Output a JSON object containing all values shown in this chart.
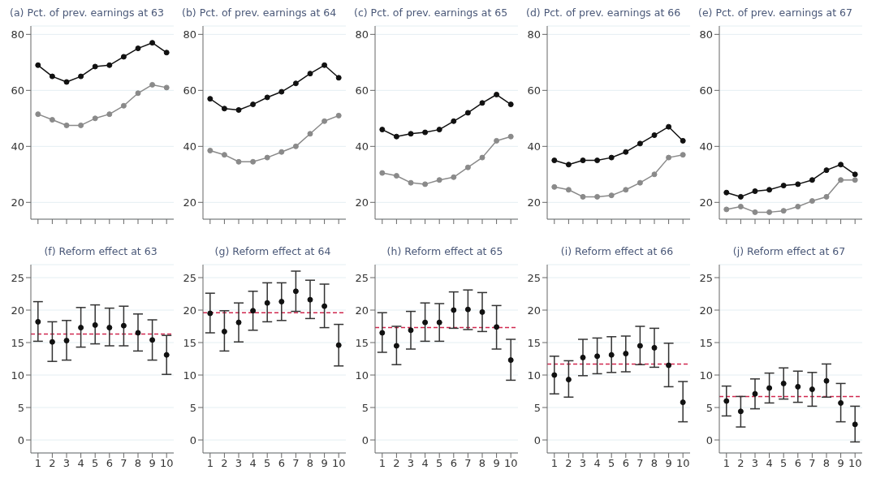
{
  "chart_data": [
    {
      "type": "line",
      "title": "(a) Pct. of prev. earnings at 63",
      "categories": [
        null,
        null,
        null,
        null,
        null,
        null,
        null,
        null,
        null,
        null
      ],
      "tick_labels": "y",
      "grid": "y",
      "marker": "circle",
      "line_style": "solid",
      "legend": false,
      "ylim": [
        14,
        83
      ],
      "yticks": [
        20,
        40,
        60,
        80
      ],
      "series": [
        {
          "color": "#111111",
          "values": [
            69,
            65,
            63,
            65,
            68.5,
            69,
            72,
            75,
            77,
            73.5
          ]
        },
        {
          "color": "#8a8a8a",
          "values": [
            51.5,
            49.5,
            47.5,
            47.5,
            50,
            51.5,
            54.5,
            59,
            62,
            61
          ]
        }
      ]
    },
    {
      "type": "line",
      "title": "(b) Pct. of prev. earnings at 64",
      "categories": [
        null,
        null,
        null,
        null,
        null,
        null,
        null,
        null,
        null,
        null
      ],
      "tick_labels": "y",
      "grid": "y",
      "marker": "circle",
      "line_style": "solid",
      "legend": false,
      "ylim": [
        14,
        83
      ],
      "yticks": [
        20,
        40,
        60,
        80
      ],
      "series": [
        {
          "color": "#111111",
          "values": [
            57,
            53.5,
            53,
            55,
            57.5,
            59.5,
            62.5,
            66,
            69,
            64.5
          ]
        },
        {
          "color": "#8a8a8a",
          "values": [
            38.5,
            37,
            34.5,
            34.5,
            36,
            38,
            40,
            44.5,
            49,
            51
          ]
        }
      ]
    },
    {
      "type": "line",
      "title": "(c) Pct. of prev. earnings at 65",
      "categories": [
        null,
        null,
        null,
        null,
        null,
        null,
        null,
        null,
        null,
        null
      ],
      "tick_labels": "y",
      "grid": "y",
      "marker": "circle",
      "line_style": "solid",
      "legend": false,
      "ylim": [
        14,
        83
      ],
      "yticks": [
        20,
        40,
        60,
        80
      ],
      "series": [
        {
          "color": "#111111",
          "values": [
            46,
            43.5,
            44.5,
            45,
            46,
            49,
            52,
            55.5,
            58.5,
            55
          ]
        },
        {
          "color": "#8a8a8a",
          "values": [
            30.5,
            29.5,
            27,
            26.5,
            28,
            29,
            32.5,
            36,
            42,
            43.5
          ]
        }
      ]
    },
    {
      "type": "line",
      "title": "(d) Pct. of prev. earnings at 66",
      "categories": [
        null,
        null,
        null,
        null,
        null,
        null,
        null,
        null,
        null,
        null
      ],
      "tick_labels": "y",
      "grid": "y",
      "marker": "circle",
      "line_style": "solid",
      "legend": false,
      "ylim": [
        14,
        83
      ],
      "yticks": [
        20,
        40,
        60,
        80
      ],
      "series": [
        {
          "color": "#111111",
          "values": [
            35,
            33.5,
            35,
            35,
            36,
            38,
            41,
            44,
            47,
            42
          ]
        },
        {
          "color": "#8a8a8a",
          "values": [
            25.5,
            24.5,
            22,
            22,
            22.5,
            24.5,
            27,
            30,
            36,
            37
          ]
        }
      ]
    },
    {
      "type": "line",
      "title": "(e) Pct. of prev. earnings at 67",
      "categories": [
        null,
        null,
        null,
        null,
        null,
        null,
        null,
        null,
        null,
        null
      ],
      "tick_labels": "y",
      "grid": "y",
      "marker": "circle",
      "line_style": "solid",
      "legend": false,
      "ylim": [
        14,
        83
      ],
      "yticks": [
        20,
        40,
        60,
        80
      ],
      "series": [
        {
          "color": "#111111",
          "values": [
            23.5,
            22,
            24,
            24.5,
            26,
            26.5,
            28,
            31.5,
            33.5,
            30
          ]
        },
        {
          "color": "#8a8a8a",
          "values": [
            17.5,
            18.5,
            16.5,
            16.5,
            17,
            18.5,
            20.5,
            22,
            28,
            28
          ]
        }
      ]
    },
    {
      "type": "scatter",
      "title": "(f) Reform effect at 63",
      "categories": [
        "1",
        "2",
        "3",
        "4",
        "5",
        "6",
        "7",
        "8",
        "9",
        "10"
      ],
      "grid": "y",
      "marker": "circle",
      "legend": false,
      "ylim": [
        -2,
        27
      ],
      "yticks": [
        0,
        5,
        10,
        15,
        20,
        25
      ],
      "ref_lines": [
        {
          "axis": "y",
          "value": 16.3,
          "color": "#d0284f",
          "line_style": "dashed"
        }
      ],
      "series": [
        {
          "color": "#111111",
          "values": [
            18.2,
            15.1,
            15.3,
            17.3,
            17.7,
            17.3,
            17.6,
            16.5,
            15.4,
            13.1
          ],
          "errors": [
            [
              15.2,
              21.3
            ],
            [
              12.1,
              18.2
            ],
            [
              12.3,
              18.4
            ],
            [
              14.3,
              20.4
            ],
            [
              14.8,
              20.8
            ],
            [
              14.5,
              20.3
            ],
            [
              14.5,
              20.6
            ],
            [
              13.7,
              19.4
            ],
            [
              12.3,
              18.5
            ],
            [
              10.1,
              16.1
            ]
          ]
        }
      ]
    },
    {
      "type": "scatter",
      "title": "(g) Reform effect at 64",
      "categories": [
        "1",
        "2",
        "3",
        "4",
        "5",
        "6",
        "7",
        "8",
        "9",
        "10"
      ],
      "grid": "y",
      "marker": "circle",
      "legend": false,
      "ylim": [
        -2,
        27
      ],
      "yticks": [
        0,
        5,
        10,
        15,
        20,
        25
      ],
      "ref_lines": [
        {
          "axis": "y",
          "value": 19.6,
          "color": "#d0284f",
          "line_style": "dashed"
        }
      ],
      "series": [
        {
          "color": "#111111",
          "values": [
            19.5,
            16.7,
            18.1,
            19.9,
            21.1,
            21.3,
            22.9,
            21.6,
            20.6,
            14.6
          ],
          "errors": [
            [
              16.5,
              22.6
            ],
            [
              13.7,
              19.9
            ],
            [
              15.1,
              21.1
            ],
            [
              16.9,
              22.9
            ],
            [
              18.2,
              24.2
            ],
            [
              18.4,
              24.2
            ],
            [
              19.8,
              26.0
            ],
            [
              18.7,
              24.6
            ],
            [
              17.3,
              24.0
            ],
            [
              11.4,
              17.8
            ]
          ]
        }
      ]
    },
    {
      "type": "scatter",
      "title": "(h) Reform effect at 65",
      "categories": [
        "1",
        "2",
        "3",
        "4",
        "5",
        "6",
        "7",
        "8",
        "9",
        "10"
      ],
      "grid": "y",
      "marker": "circle",
      "legend": false,
      "ylim": [
        -2,
        27
      ],
      "yticks": [
        0,
        5,
        10,
        15,
        20,
        25
      ],
      "ref_lines": [
        {
          "axis": "y",
          "value": 17.3,
          "color": "#d0284f",
          "line_style": "dashed"
        }
      ],
      "series": [
        {
          "color": "#111111",
          "values": [
            16.5,
            14.5,
            16.9,
            18.1,
            18.1,
            20.0,
            20.1,
            19.7,
            17.4,
            12.3
          ],
          "errors": [
            [
              13.5,
              19.6
            ],
            [
              11.6,
              17.5
            ],
            [
              14.0,
              19.8
            ],
            [
              15.2,
              21.1
            ],
            [
              15.2,
              21.0
            ],
            [
              17.2,
              22.8
            ],
            [
              17.0,
              23.1
            ],
            [
              16.7,
              22.7
            ],
            [
              14.0,
              20.7
            ],
            [
              9.2,
              15.5
            ]
          ]
        }
      ]
    },
    {
      "type": "scatter",
      "title": "(i) Reform effect at 66",
      "categories": [
        "1",
        "2",
        "3",
        "4",
        "5",
        "6",
        "7",
        "8",
        "9",
        "10"
      ],
      "grid": "y",
      "marker": "circle",
      "legend": false,
      "ylim": [
        -2,
        27
      ],
      "yticks": [
        0,
        5,
        10,
        15,
        20,
        25
      ],
      "ref_lines": [
        {
          "axis": "y",
          "value": 11.7,
          "color": "#d0284f",
          "line_style": "dashed"
        }
      ],
      "series": [
        {
          "color": "#111111",
          "values": [
            10.0,
            9.3,
            12.7,
            12.9,
            13.1,
            13.3,
            14.5,
            14.2,
            11.5,
            5.8
          ],
          "errors": [
            [
              7.1,
              12.9
            ],
            [
              6.6,
              12.2
            ],
            [
              9.9,
              15.5
            ],
            [
              10.2,
              15.7
            ],
            [
              10.4,
              15.9
            ],
            [
              10.5,
              16.0
            ],
            [
              11.6,
              17.5
            ],
            [
              11.2,
              17.2
            ],
            [
              8.2,
              14.9
            ],
            [
              2.8,
              9.0
            ]
          ]
        }
      ]
    },
    {
      "type": "scatter",
      "title": "(j) Reform effect at 67",
      "categories": [
        "1",
        "2",
        "3",
        "4",
        "5",
        "6",
        "7",
        "8",
        "9",
        "10"
      ],
      "grid": "y",
      "marker": "circle",
      "legend": false,
      "ylim": [
        -2,
        27
      ],
      "yticks": [
        0,
        5,
        10,
        15,
        20,
        25
      ],
      "ref_lines": [
        {
          "axis": "y",
          "value": 6.7,
          "color": "#d0284f",
          "line_style": "dashed"
        }
      ],
      "series": [
        {
          "color": "#111111",
          "values": [
            6.0,
            4.4,
            7.1,
            8.0,
            8.7,
            8.2,
            7.8,
            9.1,
            5.7,
            2.4
          ],
          "errors": [
            [
              3.7,
              8.3
            ],
            [
              2.0,
              6.7
            ],
            [
              4.8,
              9.4
            ],
            [
              5.7,
              10.3
            ],
            [
              6.3,
              11.1
            ],
            [
              5.8,
              10.6
            ],
            [
              5.2,
              10.4
            ],
            [
              6.6,
              11.7
            ],
            [
              2.8,
              8.7
            ],
            [
              -0.3,
              5.2
            ]
          ]
        }
      ]
    }
  ]
}
